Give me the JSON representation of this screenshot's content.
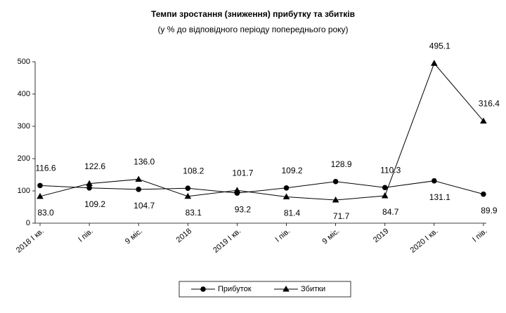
{
  "chart_data": {
    "type": "line",
    "title": "Темпи зростання (зниження) прибутку та збитків",
    "subtitle": "(у % до відповідного періоду попереднього року)",
    "categories": [
      "2018 І кв.",
      "І пів.",
      "9 міс.",
      "2018",
      "2019 І кв.",
      "І пів.",
      "9 міс.",
      "2019",
      "2020 І кв.",
      "І пів."
    ],
    "series": [
      {
        "name": "Прибуток",
        "color": "#000000",
        "marker": "circle",
        "values": [
          116.6,
          109.2,
          104.7,
          108.2,
          93.2,
          109.2,
          128.9,
          110.3,
          131.1,
          89.9
        ],
        "value_labels": [
          "116.6",
          "109.2",
          "104.7",
          "108.2",
          "93.2",
          "109.2",
          "128.9",
          "110.3",
          "131.1",
          "89.9"
        ]
      },
      {
        "name": "Збитки",
        "color": "#000000",
        "marker": "triangle",
        "values": [
          83.0,
          122.6,
          136.0,
          83.1,
          101.7,
          81.4,
          71.7,
          84.7,
          495.1,
          316.4
        ],
        "value_labels": [
          "83.0",
          "122.6",
          "136.0",
          "83.1",
          "101.7",
          "81.4",
          "71.7",
          "84.7",
          "495.1",
          "316.4"
        ]
      }
    ],
    "ylim": [
      0,
      500
    ],
    "yticks": [
      0,
      100,
      200,
      300,
      400,
      500
    ],
    "grid": false,
    "legend": "bottom"
  }
}
